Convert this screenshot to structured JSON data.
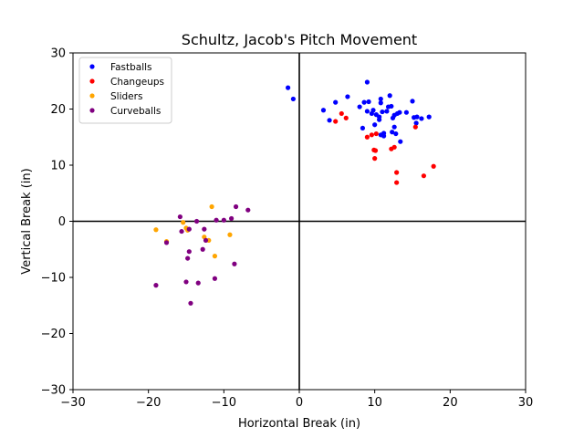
{
  "chart_data": {
    "type": "scatter",
    "title": "Schultz, Jacob's Pitch Movement",
    "xlabel": "Horizontal Break (in)",
    "ylabel": "Vertical Break (in)",
    "xlim": [
      -30,
      30
    ],
    "ylim": [
      -30,
      30
    ],
    "xticks": [
      -30,
      -20,
      -10,
      0,
      10,
      20,
      30
    ],
    "yticks": [
      -30,
      -20,
      -10,
      0,
      10,
      20,
      30
    ],
    "xtick_labels": [
      "−30",
      "−20",
      "−10",
      "0",
      "10",
      "20",
      "30"
    ],
    "ytick_labels": [
      "−30",
      "−20",
      "−10",
      "0",
      "10",
      "20",
      "30"
    ],
    "grid": false,
    "legend_position": "top-left",
    "series": [
      {
        "name": "Fastballs",
        "color": "#0000ff",
        "points": [
          [
            -1.5,
            23.8
          ],
          [
            -0.8,
            21.8
          ],
          [
            3.2,
            19.8
          ],
          [
            4.0,
            18.0
          ],
          [
            4.8,
            21.2
          ],
          [
            6.4,
            22.2
          ],
          [
            8.0,
            20.4
          ],
          [
            8.6,
            21.2
          ],
          [
            8.4,
            16.6
          ],
          [
            9.0,
            24.8
          ],
          [
            9.2,
            21.3
          ],
          [
            9.0,
            19.6
          ],
          [
            9.6,
            19.2
          ],
          [
            9.8,
            19.8
          ],
          [
            10.0,
            17.2
          ],
          [
            10.2,
            19.0
          ],
          [
            10.6,
            18.6
          ],
          [
            10.6,
            18.1
          ],
          [
            10.8,
            21.1
          ],
          [
            10.8,
            21.8
          ],
          [
            11.0,
            19.5
          ],
          [
            10.8,
            15.4
          ],
          [
            11.2,
            15.2
          ],
          [
            11.2,
            15.7
          ],
          [
            11.6,
            19.6
          ],
          [
            11.8,
            20.4
          ],
          [
            12.0,
            22.4
          ],
          [
            12.2,
            20.5
          ],
          [
            12.3,
            15.9
          ],
          [
            12.6,
            16.8
          ],
          [
            12.4,
            18.4
          ],
          [
            12.6,
            18.9
          ],
          [
            12.8,
            15.6
          ],
          [
            13.0,
            19.2
          ],
          [
            13.3,
            19.4
          ],
          [
            13.4,
            14.2
          ],
          [
            14.2,
            19.4
          ],
          [
            15.0,
            21.4
          ],
          [
            15.2,
            18.5
          ],
          [
            15.6,
            18.6
          ],
          [
            15.5,
            17.5
          ],
          [
            16.2,
            18.3
          ],
          [
            17.2,
            18.6
          ]
        ]
      },
      {
        "name": "Changeups",
        "color": "#ff0000",
        "points": [
          [
            4.8,
            17.8
          ],
          [
            5.6,
            19.2
          ],
          [
            6.2,
            18.4
          ],
          [
            9.0,
            15.0
          ],
          [
            9.6,
            15.4
          ],
          [
            10.2,
            15.6
          ],
          [
            9.9,
            12.7
          ],
          [
            10.1,
            12.6
          ],
          [
            10.0,
            11.2
          ],
          [
            12.2,
            12.9
          ],
          [
            12.6,
            13.2
          ],
          [
            12.9,
            8.7
          ],
          [
            12.9,
            6.9
          ],
          [
            15.4,
            16.8
          ],
          [
            16.5,
            8.1
          ],
          [
            17.8,
            9.8
          ]
        ]
      },
      {
        "name": "Sliders",
        "color": "#ffa500",
        "points": [
          [
            -19.0,
            -1.5
          ],
          [
            -17.6,
            -3.6
          ],
          [
            -15.4,
            -0.2
          ],
          [
            -15.0,
            -1.2
          ],
          [
            -14.8,
            -1.6
          ],
          [
            -12.6,
            -2.8
          ],
          [
            -12.0,
            -3.4
          ],
          [
            -11.6,
            2.6
          ],
          [
            -11.2,
            -6.2
          ],
          [
            -9.2,
            -2.4
          ]
        ]
      },
      {
        "name": "Curveballs",
        "color": "#800080",
        "points": [
          [
            -19.0,
            -11.4
          ],
          [
            -17.6,
            -3.8
          ],
          [
            -15.8,
            0.8
          ],
          [
            -15.6,
            -1.8
          ],
          [
            -15.0,
            -10.8
          ],
          [
            -14.8,
            -6.6
          ],
          [
            -14.6,
            -1.4
          ],
          [
            -14.6,
            -5.4
          ],
          [
            -14.4,
            -14.6
          ],
          [
            -13.6,
            0.0
          ],
          [
            -13.4,
            -11.0
          ],
          [
            -12.8,
            -5.0
          ],
          [
            -12.6,
            -1.4
          ],
          [
            -12.4,
            -3.4
          ],
          [
            -11.2,
            -10.2
          ],
          [
            -11.0,
            0.2
          ],
          [
            -10.0,
            0.2
          ],
          [
            -9.0,
            0.5
          ],
          [
            -8.6,
            -7.6
          ],
          [
            -8.4,
            2.6
          ],
          [
            -6.8,
            2.0
          ]
        ]
      }
    ]
  }
}
